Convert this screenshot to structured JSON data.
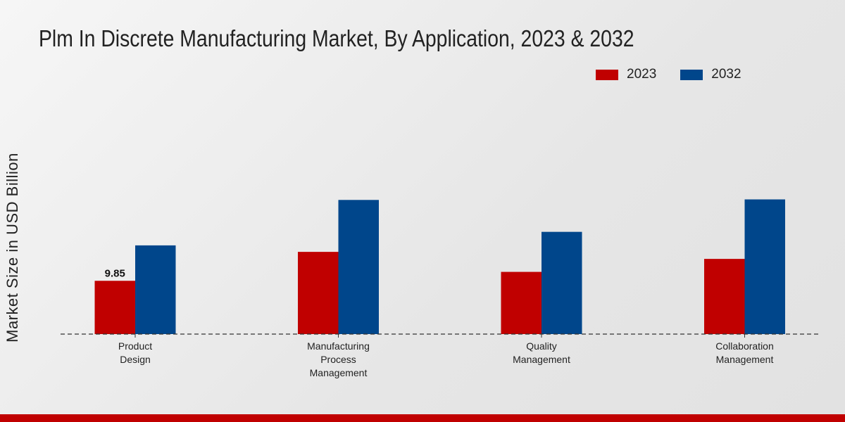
{
  "chart_data": {
    "type": "bar",
    "title": "Plm In Discrete Manufacturing Market, By Application, 2023 & 2032",
    "xlabel": "",
    "ylabel": "Market Size in USD Billion",
    "categories": [
      [
        "Product",
        "Design"
      ],
      [
        "Manufacturing",
        "Process",
        "Management"
      ],
      [
        "Quality",
        "Management"
      ],
      [
        "Collaboration",
        "Management"
      ]
    ],
    "series": [
      {
        "name": "2023",
        "color": "#c00000",
        "values": [
          9.85,
          15.2,
          11.5,
          13.9
        ]
      },
      {
        "name": "2032",
        "color": "#00468b",
        "values": [
          16.4,
          24.8,
          18.9,
          24.9
        ]
      }
    ],
    "data_labels": [
      {
        "series": "2023",
        "category_index": 0,
        "text": "9.85"
      }
    ],
    "ylim": [
      0,
      30
    ],
    "grid": false,
    "legend_position": "top-right"
  }
}
